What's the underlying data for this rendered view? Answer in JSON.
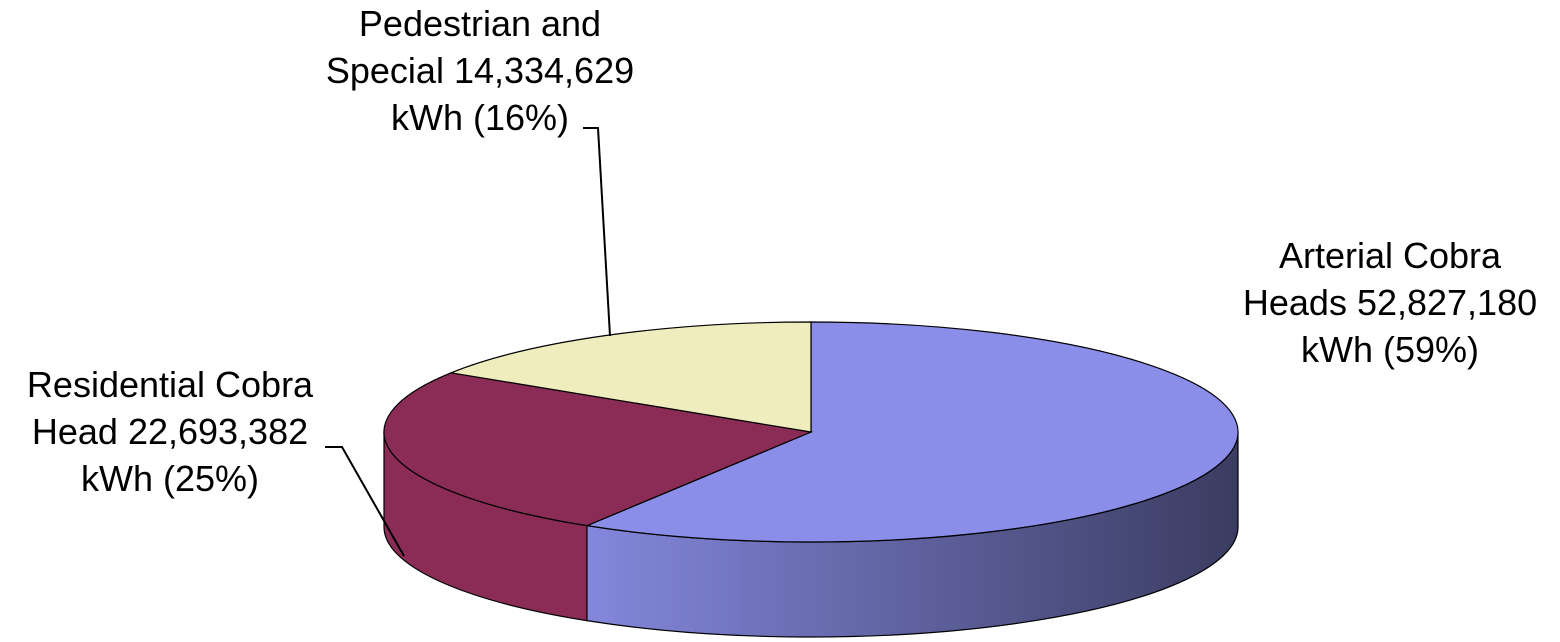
{
  "chart_data": {
    "type": "pie",
    "style": "3d",
    "title": "",
    "slices": [
      {
        "name": "Arterial Cobra Heads",
        "value": 52827180,
        "unit": "kWh",
        "percent": 59,
        "color": "#8B8EE8",
        "label_lines": [
          "Arterial Cobra",
          "Heads 52,827,180",
          "kWh (59%)"
        ]
      },
      {
        "name": "Residential Cobra Head",
        "value": 22693382,
        "unit": "kWh",
        "percent": 25,
        "color": "#8B2C57",
        "label_lines": [
          "Residential Cobra",
          "Head 22,693,382",
          "kWh (25%)"
        ]
      },
      {
        "name": "Pedestrian and Special",
        "value": 14334629,
        "unit": "kWh",
        "percent": 16,
        "color": "#EFEDBE",
        "label_lines": [
          "Pedestrian and",
          "Special 14,334,629",
          "kWh (16%)"
        ]
      }
    ]
  }
}
